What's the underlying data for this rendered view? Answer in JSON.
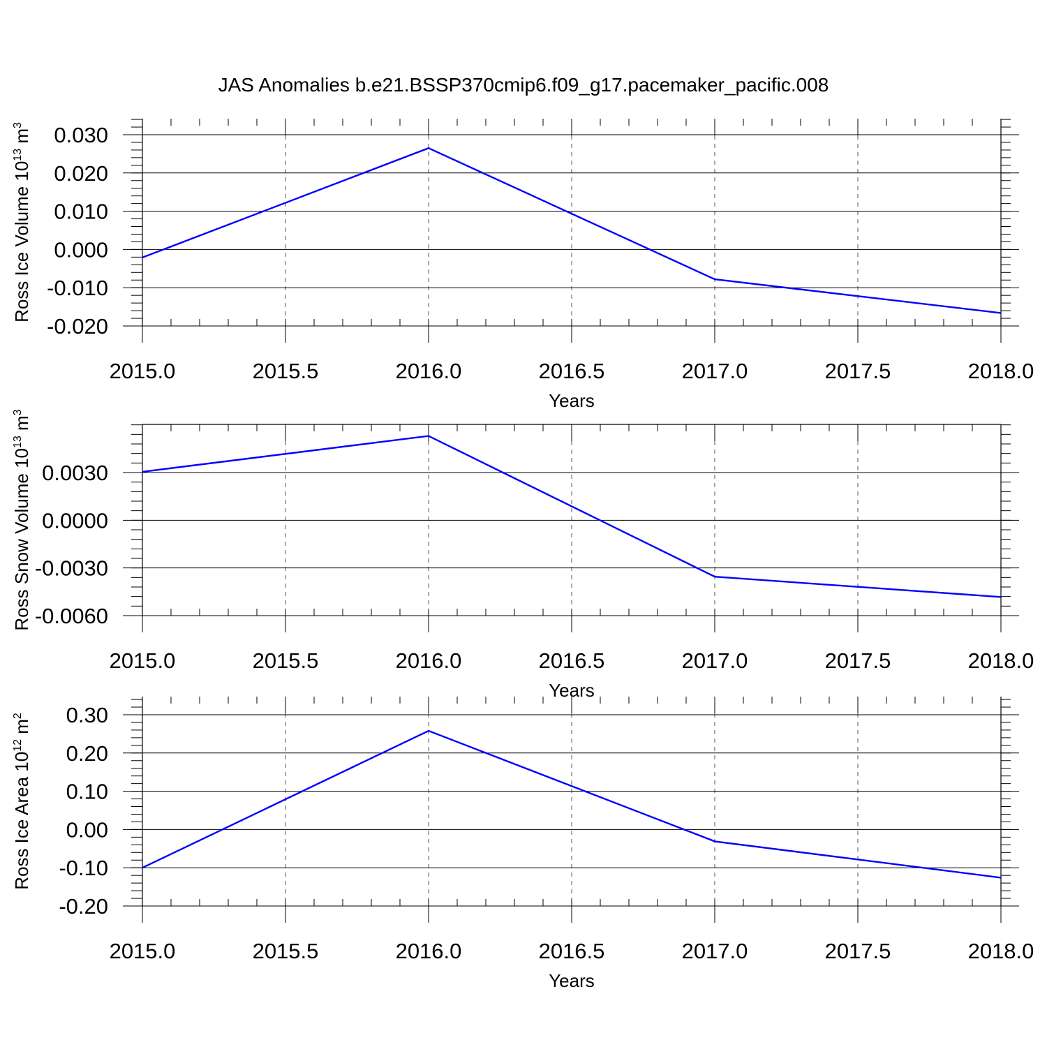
{
  "chart_data": {
    "title": "JAS Anomalies b.e21.BSSP370cmip6.f09_g17.pacemaker_pacific.008",
    "panels": [
      {
        "type": "line",
        "ylabel": "Ross Ice Volume 10",
        "ylabel_exp": "13",
        "ylabel_unit": " m",
        "ylabel_unit_exp": "3",
        "xlabel": "Years",
        "xlim": [
          2015.0,
          2018.0
        ],
        "ylim": [
          -0.02,
          0.03
        ],
        "xticks": [
          "2015.0",
          "2015.5",
          "2016.0",
          "2016.5",
          "2017.0",
          "2017.5",
          "2018.0"
        ],
        "yticks": [
          {
            "value": 0.03,
            "label": "0.030"
          },
          {
            "value": 0.02,
            "label": "0.020"
          },
          {
            "value": 0.01,
            "label": "0.010"
          },
          {
            "value": 0.0,
            "label": "0.000"
          },
          {
            "value": -0.01,
            "label": "-0.010"
          },
          {
            "value": -0.02,
            "label": "-0.020"
          }
        ],
        "grid": true,
        "series": [
          {
            "x": [
              2015,
              2016,
              2017,
              2018
            ],
            "y": [
              -0.0021,
              0.0265,
              -0.0078,
              -0.0166
            ],
            "color": "#0000ff"
          }
        ]
      },
      {
        "type": "line",
        "ylabel": "Ross Snow Volume 10",
        "ylabel_exp": "13",
        "ylabel_unit": " m",
        "ylabel_unit_exp": "3",
        "xlabel": "Years",
        "xlim": [
          2015.0,
          2018.0
        ],
        "ylim": [
          -0.006,
          0.006
        ],
        "xticks": [
          "2015.0",
          "2015.5",
          "2016.0",
          "2016.5",
          "2017.0",
          "2017.5",
          "2018.0"
        ],
        "yticks": [
          {
            "value": 0.003,
            "label": "0.0030"
          },
          {
            "value": 0.0,
            "label": "0.0000"
          },
          {
            "value": -0.003,
            "label": "-0.0030"
          },
          {
            "value": -0.006,
            "label": "-0.0060"
          }
        ],
        "grid": true,
        "series": [
          {
            "x": [
              2015,
              2016,
              2017,
              2018
            ],
            "y": [
              0.00305,
              0.0053,
              -0.00355,
              -0.00483
            ],
            "color": "#0000ff"
          }
        ]
      },
      {
        "type": "line",
        "ylabel": "Ross Ice Area 10",
        "ylabel_exp": "12",
        "ylabel_unit": " m",
        "ylabel_unit_exp": "2",
        "xlabel": "Years",
        "xlim": [
          2015.0,
          2018.0
        ],
        "ylim": [
          -0.2,
          0.3
        ],
        "xticks": [
          "2015.0",
          "2015.5",
          "2016.0",
          "2016.5",
          "2017.0",
          "2017.5",
          "2018.0"
        ],
        "yticks": [
          {
            "value": 0.3,
            "label": "0.30"
          },
          {
            "value": 0.2,
            "label": "0.20"
          },
          {
            "value": 0.1,
            "label": "0.10"
          },
          {
            "value": 0.0,
            "label": "0.00"
          },
          {
            "value": -0.1,
            "label": "-0.10"
          },
          {
            "value": -0.2,
            "label": "-0.20"
          }
        ],
        "grid": true,
        "series": [
          {
            "x": [
              2015,
              2016,
              2017,
              2018
            ],
            "y": [
              -0.1,
              0.258,
              -0.031,
              -0.126
            ],
            "color": "#0000ff"
          }
        ]
      }
    ]
  }
}
